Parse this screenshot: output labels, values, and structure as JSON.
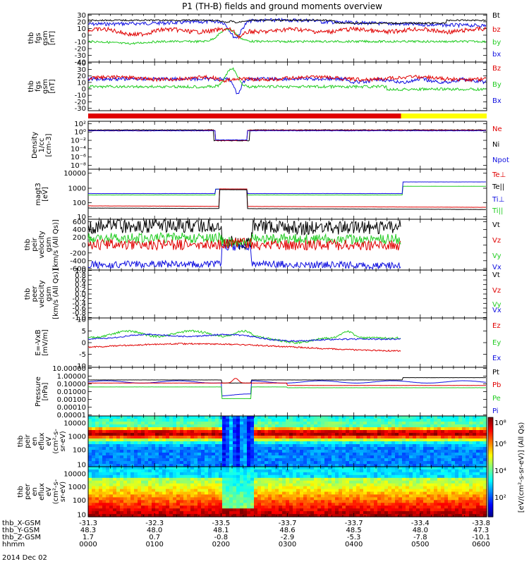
{
  "title": "P1 (TH-B) fields and ground moments overview",
  "date_label": "2014 Dec 02",
  "colors": {
    "black": "#000000",
    "red": "#e00000",
    "green": "#22cc22",
    "blue": "#1010e0",
    "yellow": "#ffff00"
  },
  "chart_data": [
    {
      "type": "line",
      "ylabel": [
        "thb",
        "fgs",
        "gsm",
        "[nT]"
      ],
      "yticks": [
        "30",
        "20",
        "10",
        "0",
        "-10",
        "-20",
        "-30",
        "-40"
      ],
      "ylim": [
        -40,
        30
      ],
      "x": [
        "0000",
        "0100",
        "0200",
        "0300",
        "0400",
        "0500",
        "0600"
      ],
      "series": [
        {
          "name": "Bt",
          "color": "#000000"
        },
        {
          "name": "bz",
          "color": "#e00000"
        },
        {
          "name": "by",
          "color": "#22cc22"
        },
        {
          "name": "bx",
          "color": "#1010e0"
        }
      ]
    },
    {
      "type": "line",
      "ylabel": [
        "thb",
        "fgs",
        "gsm",
        "[nT]"
      ],
      "yticks": [
        "40",
        "30",
        "20",
        "10",
        "0",
        "-10",
        "-20",
        "-30"
      ],
      "ylim": [
        -35,
        40
      ],
      "series": [
        {
          "name": "Bz",
          "color": "#e00000"
        },
        {
          "name": "By",
          "color": "#22cc22"
        },
        {
          "name": "Bx",
          "color": "#1010e0"
        }
      ]
    },
    {
      "type": "line",
      "ylabel": [
        "Density",
        "1/cc",
        "[cm-3]"
      ],
      "yticks": [
        "10²",
        "10⁰",
        "10⁻²",
        "10⁻⁴",
        "10⁻⁶",
        "10⁻⁸"
      ],
      "scale": "log",
      "series": [
        {
          "name": "Ne",
          "color": "#e00000"
        },
        {
          "name": "Ni",
          "color": "#000000"
        },
        {
          "name": "Npot",
          "color": "#1010e0"
        }
      ]
    },
    {
      "type": "line",
      "ylabel": [
        "magt3",
        "[eV]"
      ],
      "yticks": [
        "10000",
        "1000",
        "100",
        "10"
      ],
      "scale": "log",
      "series": [
        {
          "name": "Te⊥",
          "color": "#e00000"
        },
        {
          "name": "Te||",
          "color": "#000000"
        },
        {
          "name": "Ti⊥",
          "color": "#1010e0"
        },
        {
          "name": "Ti||",
          "color": "#22cc22"
        }
      ]
    },
    {
      "type": "line",
      "ylabel": [
        "thb",
        "peir",
        "velocity",
        "gsm",
        "[km/s (All Qs)]"
      ],
      "yticks": [
        "600",
        "400",
        "200",
        "0",
        "-200",
        "-400",
        "-600"
      ],
      "ylim": [
        -600,
        600
      ],
      "series": [
        {
          "name": "Vt",
          "color": "#000000"
        },
        {
          "name": "Vz",
          "color": "#e00000"
        },
        {
          "name": "Vy",
          "color": "#22cc22"
        },
        {
          "name": "Vx",
          "color": "#1010e0"
        }
      ]
    },
    {
      "type": "line",
      "ylabel": [
        "thb",
        "peer",
        "velocity",
        "gsm",
        "[km/s (All Qs)]"
      ],
      "yticks": [
        "1.0",
        "0.8",
        "0.6",
        "0.4",
        "0.2",
        "0.0",
        "-0.2",
        "-0.4",
        "-0.6",
        "-0.8",
        "-1.0"
      ],
      "ylim": [
        -1,
        1
      ],
      "series": [
        {
          "name": "Vt",
          "color": "#000000"
        },
        {
          "name": "Vz",
          "color": "#e00000"
        },
        {
          "name": "Vy",
          "color": "#22cc22"
        },
        {
          "name": "Vx",
          "color": "#1010e0"
        }
      ]
    },
    {
      "type": "line",
      "ylabel": [
        "E=-VxB",
        "[mV/m]"
      ],
      "yticks": [
        "10",
        "5",
        "0",
        "-5",
        "-10"
      ],
      "ylim": [
        -10,
        10
      ],
      "series": [
        {
          "name": "Ez",
          "color": "#e00000"
        },
        {
          "name": "Ey",
          "color": "#22cc22"
        },
        {
          "name": "Ex",
          "color": "#1010e0"
        }
      ]
    },
    {
      "type": "line",
      "ylabel": [
        "Pressure",
        "[nPa]"
      ],
      "yticks": [
        "10.00000",
        "1.00000",
        "0.10000",
        "0.01000",
        "0.00100",
        "0.00010",
        "0.00001"
      ],
      "scale": "log",
      "series": [
        {
          "name": "Pt",
          "color": "#000000"
        },
        {
          "name": "Pb",
          "color": "#e00000"
        },
        {
          "name": "Pe",
          "color": "#22cc22"
        },
        {
          "name": "Pi",
          "color": "#1010e0"
        }
      ]
    },
    {
      "type": "heatmap",
      "ylabel": [
        "thb",
        "peir",
        "en",
        "eflux",
        "eV",
        "(cm²-s-",
        "sr-eV)"
      ],
      "yticks": [
        "10000",
        "1000",
        "100",
        "10"
      ]
    },
    {
      "type": "heatmap",
      "ylabel": [
        "thb",
        "peer",
        "en",
        "eflux",
        "eV",
        "(cm²-s-",
        "sr-eV)"
      ],
      "yticks": [
        "10000",
        "1000",
        "100",
        "10"
      ]
    }
  ],
  "colorbar": {
    "ticks": [
      "10⁸",
      "10⁶",
      "10⁴",
      "10²"
    ],
    "label": "[eV/(cm²-s-sr-eV)] (All Qs)"
  },
  "ephemeris": {
    "rows": [
      {
        "name": "thb_X-GSM",
        "values": [
          "-31.3",
          "-32.3",
          "-33.5",
          "-33.7",
          "-33.7",
          "-33.4",
          "-33.8"
        ]
      },
      {
        "name": "thb_Y-GSM",
        "values": [
          "48.3",
          "48.0",
          "48.1",
          "48.6",
          "48.5",
          "48.0",
          "47.3"
        ]
      },
      {
        "name": "thb_Z-GSM",
        "values": [
          "1.7",
          "0.7",
          "-0.8",
          "-2.9",
          "-5.3",
          "-7.8",
          "-10.1"
        ]
      },
      {
        "name": "hhmm",
        "values": [
          "0000",
          "0100",
          "0200",
          "0300",
          "0400",
          "0500",
          "0600"
        ]
      }
    ]
  }
}
